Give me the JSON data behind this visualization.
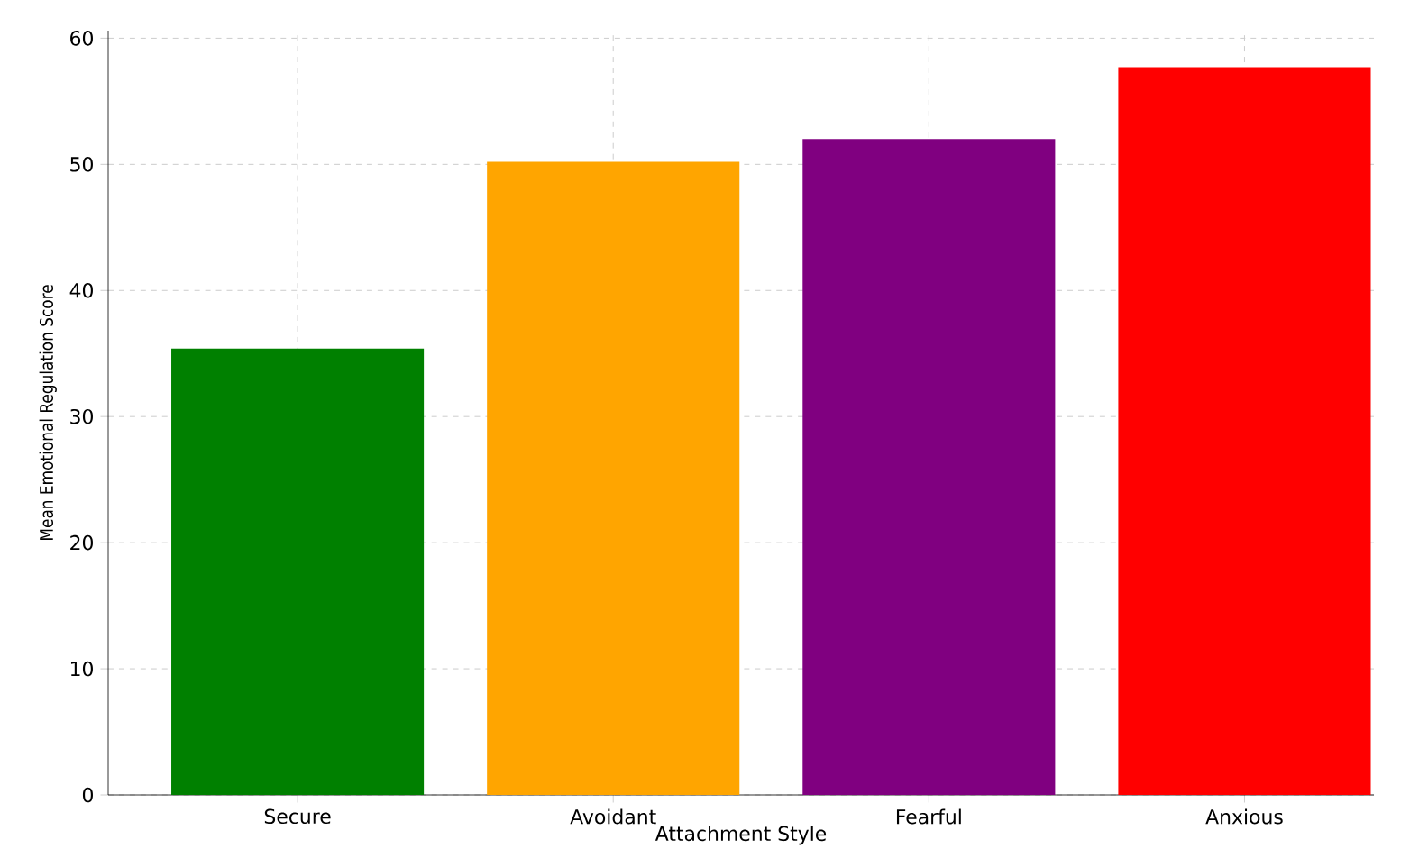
{
  "chart_data": {
    "type": "bar",
    "xlabel": "Attachment Style",
    "ylabel": "Mean Emotional Regulation Score",
    "categories": [
      "Secure",
      "Avoidant",
      "Fearful",
      "Anxious"
    ],
    "values": [
      35.4,
      50.2,
      52.0,
      57.7
    ],
    "colors": [
      "#008000",
      "#ffa500",
      "#800080",
      "#ff0000"
    ],
    "ylim": [
      0,
      60.6
    ],
    "yticks": [
      0,
      10,
      20,
      30,
      40,
      50,
      60
    ],
    "grid": true
  }
}
